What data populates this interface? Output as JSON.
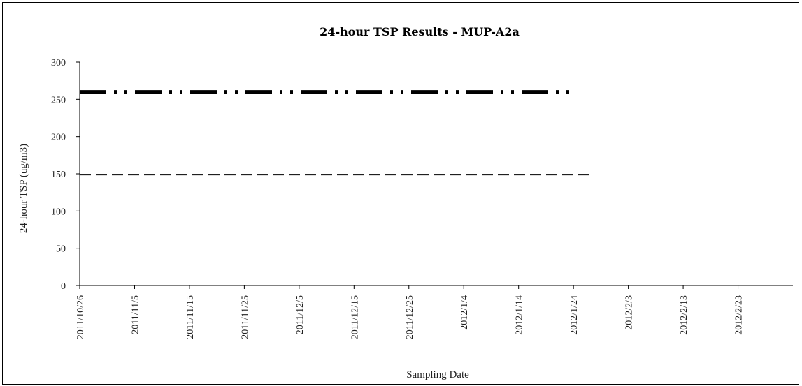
{
  "chart_data": {
    "type": "line",
    "title": "24-hour TSP Results - MUP-A2a",
    "xlabel": "Sampling Date",
    "ylabel": "24-hour TSP (ug/m3)",
    "ylim": [
      0,
      300
    ],
    "yticks": [
      "0",
      "50",
      "100",
      "150",
      "200",
      "250",
      "300"
    ],
    "xticks": [
      "2011/10/26",
      "2011/11/5",
      "2011/11/15",
      "2011/11/25",
      "2011/12/5",
      "2011/12/15",
      "2011/12/25",
      "2012/1/4",
      "2012/1/14",
      "2012/1/24",
      "2012/2/3",
      "2012/2/13",
      "2012/2/23"
    ],
    "xrange": [
      "2011/10/26",
      "2012/3/4"
    ],
    "grid": false,
    "legend": "none",
    "series": [
      {
        "x": [
          "2011/10/26",
          "2012/1/24"
        ],
        "values": [
          260,
          260
        ],
        "style": "dash-dot-dot",
        "color": "#000000"
      },
      {
        "x": [
          "2011/10/26",
          "2012/1/27"
        ],
        "values": [
          149,
          149
        ],
        "style": "dashed",
        "color": "#000000"
      }
    ]
  }
}
